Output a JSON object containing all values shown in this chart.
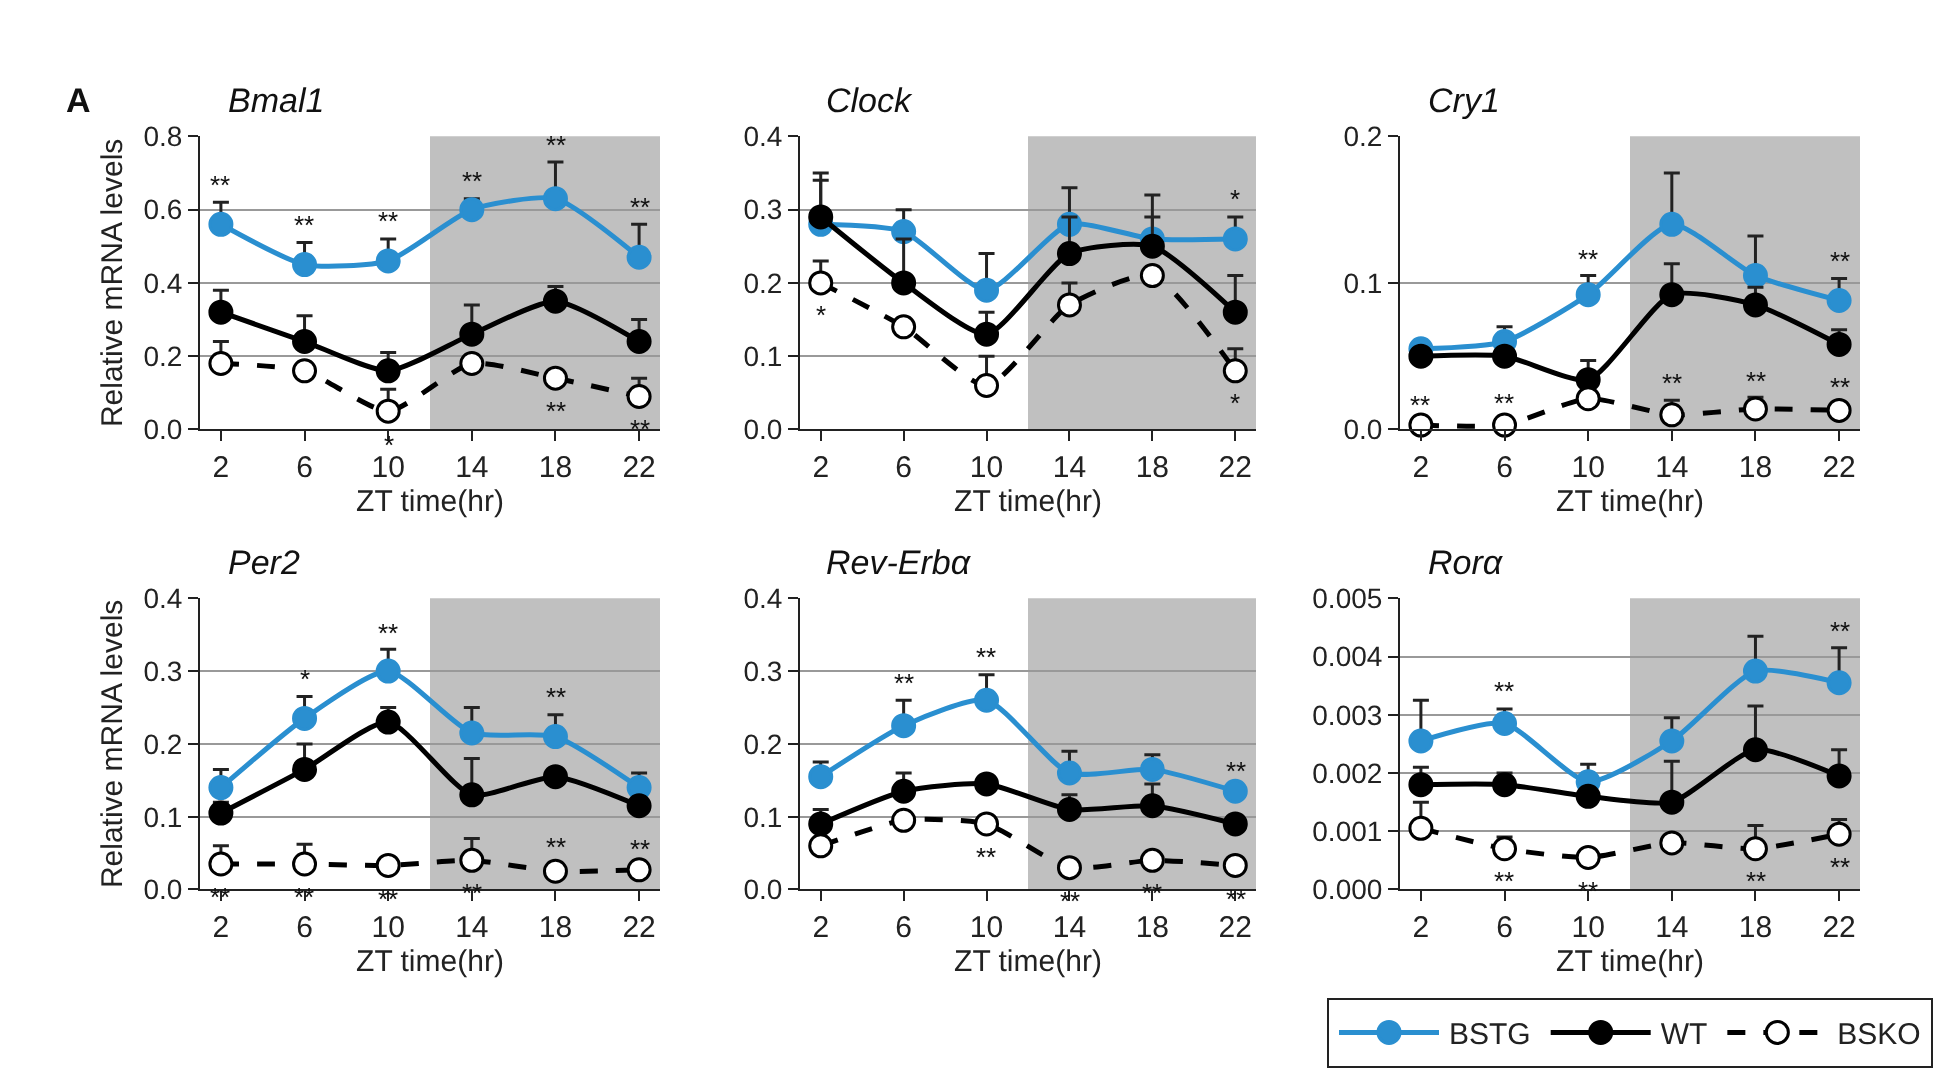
{
  "chart_data": [
    {
      "type": "line",
      "title": "Bmal1",
      "xlabel": "ZT time(hr)",
      "ylabel": "Relative mRNA levels",
      "x": [
        2,
        6,
        10,
        14,
        18,
        22
      ],
      "xlim": [
        1,
        23
      ],
      "xticks": [
        2,
        6,
        10,
        14,
        18,
        22
      ],
      "ylim": [
        0,
        0.8
      ],
      "yticks": [
        {
          "value": 0,
          "label": "0.0"
        },
        {
          "value": 0.2,
          "label": "0.2"
        },
        {
          "value": 0.4,
          "label": "0.4"
        },
        {
          "value": 0.6,
          "label": "0.6"
        },
        {
          "value": 0.8,
          "label": "0.8"
        }
      ],
      "grid": "y",
      "marker": "circle",
      "bands": [
        {
          "axis": "x",
          "from": 12,
          "to": 23,
          "color": "#c0c0c0"
        }
      ],
      "series": [
        {
          "color": "#2a8fd0",
          "line_style": "solid",
          "values": [
            0.56,
            0.45,
            0.46,
            0.6,
            0.63,
            0.47
          ],
          "errors": [
            [
              0.56,
              0.62
            ],
            [
              0.45,
              0.51
            ],
            [
              0.46,
              0.52
            ],
            [
              0.6,
              0.63
            ],
            [
              0.63,
              0.73
            ],
            [
              0.47,
              0.56
            ]
          ]
        },
        {
          "color": "#000000",
          "line_style": "solid",
          "values": [
            0.32,
            0.24,
            0.16,
            0.26,
            0.35,
            0.24
          ],
          "errors": [
            [
              0.32,
              0.38
            ],
            [
              0.24,
              0.31
            ],
            [
              0.16,
              0.21
            ],
            [
              0.26,
              0.34
            ],
            [
              0.35,
              0.39
            ],
            [
              0.24,
              0.3
            ]
          ]
        },
        {
          "color": "#000000",
          "line_style": "dashed",
          "values": [
            0.18,
            0.16,
            0.05,
            0.18,
            0.14,
            0.09
          ],
          "errors": [
            [
              0.18,
              0.24
            ],
            [
              0.16,
              0.18
            ],
            [
              0.05,
              0.11
            ],
            [
              0.18,
              0.19
            ],
            [
              0.14,
              0.16
            ],
            [
              0.09,
              0.14
            ]
          ]
        }
      ],
      "annotations": [
        "A",
        {
          "text": "**",
          "x": 2,
          "y": 0.62
        },
        {
          "text": "**",
          "x": 6,
          "y": 0.51
        },
        {
          "text": "**",
          "x": 10,
          "y": 0.52
        },
        {
          "text": "**",
          "x": 14,
          "y": 0.63
        },
        {
          "text": "**",
          "x": 18,
          "y": 0.73
        },
        {
          "text": "**",
          "x": 22,
          "y": 0.56
        },
        {
          "text": "*",
          "x": 10,
          "y": 0.05
        },
        {
          "text": "**",
          "x": 18,
          "y": 0.14
        },
        {
          "text": "**",
          "x": 22,
          "y": 0.09
        }
      ]
    },
    {
      "type": "line",
      "title": "Clock",
      "xlabel": "ZT time(hr)",
      "x": [
        2,
        6,
        10,
        14,
        18,
        22
      ],
      "xlim": [
        1,
        23
      ],
      "xticks": [
        2,
        6,
        10,
        14,
        18,
        22
      ],
      "ylim": [
        0,
        0.4
      ],
      "yticks": [
        {
          "value": 0,
          "label": "0.0"
        },
        {
          "value": 0.1,
          "label": "0.1"
        },
        {
          "value": 0.2,
          "label": "0.2"
        },
        {
          "value": 0.3,
          "label": "0.3"
        },
        {
          "value": 0.4,
          "label": "0.4"
        }
      ],
      "grid": "y",
      "marker": "circle",
      "bands": [
        {
          "axis": "x",
          "from": 12,
          "to": 23,
          "color": "#c0c0c0"
        }
      ],
      "series": [
        {
          "color": "#2a8fd0",
          "line_style": "solid",
          "values": [
            0.28,
            0.27,
            0.19,
            0.28,
            0.26,
            0.26
          ],
          "errors": [
            [
              0.28,
              0.34
            ],
            [
              0.27,
              0.3
            ],
            [
              0.19,
              0.24
            ],
            [
              0.28,
              0.33
            ],
            [
              0.26,
              0.32
            ],
            [
              0.26,
              0.29
            ]
          ]
        },
        {
          "color": "#000000",
          "line_style": "solid",
          "values": [
            0.29,
            0.2,
            0.13,
            0.24,
            0.25,
            0.16
          ],
          "errors": [
            [
              0.29,
              0.35
            ],
            [
              0.2,
              0.26
            ],
            [
              0.13,
              0.16
            ],
            [
              0.24,
              0.29
            ],
            [
              0.25,
              0.29
            ],
            [
              0.16,
              0.21
            ]
          ]
        },
        {
          "color": "#000000",
          "line_style": "dashed",
          "values": [
            0.2,
            0.14,
            0.06,
            0.17,
            0.21,
            0.08
          ],
          "errors": [
            [
              0.2,
              0.23
            ],
            [
              0.14,
              0.15
            ],
            [
              0.06,
              0.1
            ],
            [
              0.17,
              0.2
            ],
            [
              0.21,
              0.22
            ],
            [
              0.08,
              0.11
            ]
          ]
        }
      ],
      "annotations": [
        {
          "text": "*",
          "x": 2,
          "y": 0.2
        },
        {
          "text": "*",
          "x": 22,
          "y": 0.29
        },
        {
          "text": "*",
          "x": 22,
          "y": 0.08
        }
      ]
    },
    {
      "type": "line",
      "title": "Cry1",
      "xlabel": "ZT time(hr)",
      "x": [
        2,
        6,
        10,
        14,
        18,
        22
      ],
      "xlim": [
        1,
        23
      ],
      "xticks": [
        2,
        6,
        10,
        14,
        18,
        22
      ],
      "ylim": [
        0,
        0.2
      ],
      "yticks": [
        {
          "value": 0,
          "label": "0.0"
        },
        {
          "value": 0.1,
          "label": "0.1"
        },
        {
          "value": 0.2,
          "label": "0.2"
        }
      ],
      "grid": "y",
      "marker": "circle",
      "bands": [
        {
          "axis": "x",
          "from": 12,
          "to": 23,
          "color": "#c0c0c0"
        }
      ],
      "series": [
        {
          "color": "#2a8fd0",
          "line_style": "solid",
          "values": [
            0.055,
            0.06,
            0.092,
            0.14,
            0.105,
            0.088
          ],
          "errors": [
            [
              0.055,
              0.058
            ],
            [
              0.06,
              0.07
            ],
            [
              0.092,
              0.105
            ],
            [
              0.14,
              0.175
            ],
            [
              0.105,
              0.132
            ],
            [
              0.088,
              0.103
            ]
          ]
        },
        {
          "color": "#000000",
          "line_style": "solid",
          "values": [
            0.05,
            0.05,
            0.034,
            0.092,
            0.085,
            0.058
          ],
          "errors": [
            [
              0.05,
              0.052
            ],
            [
              0.05,
              0.052
            ],
            [
              0.034,
              0.047
            ],
            [
              0.092,
              0.113
            ],
            [
              0.085,
              0.097
            ],
            [
              0.058,
              0.068
            ]
          ]
        },
        {
          "color": "#000000",
          "line_style": "dashed",
          "values": [
            0.003,
            0.003,
            0.021,
            0.01,
            0.014,
            0.013
          ],
          "errors": [
            [
              0.003,
              0.005
            ],
            [
              0.003,
              0.006
            ],
            [
              0.021,
              0.026
            ],
            [
              0.01,
              0.02
            ],
            [
              0.014,
              0.022
            ],
            [
              0.013,
              0.018
            ]
          ]
        }
      ],
      "annotations": [
        {
          "text": "**",
          "x": 10,
          "y": 0.105
        },
        {
          "text": "**",
          "x": 22,
          "y": 0.103
        },
        {
          "text": "**",
          "x": 2,
          "y": 0.005
        },
        {
          "text": "**",
          "x": 6,
          "y": 0.006
        },
        {
          "text": "**",
          "x": 14,
          "y": 0.02
        },
        {
          "text": "**",
          "x": 18,
          "y": 0.022
        },
        {
          "text": "**",
          "x": 22,
          "y": 0.018
        }
      ]
    },
    {
      "type": "line",
      "title": "Per2",
      "xlabel": "ZT time(hr)",
      "ylabel": "Relative mRNA levels",
      "x": [
        2,
        6,
        10,
        14,
        18,
        22
      ],
      "xlim": [
        1,
        23
      ],
      "xticks": [
        2,
        6,
        10,
        14,
        18,
        22
      ],
      "ylim": [
        0,
        0.4
      ],
      "yticks": [
        {
          "value": 0,
          "label": "0.0"
        },
        {
          "value": 0.1,
          "label": "0.1"
        },
        {
          "value": 0.2,
          "label": "0.2"
        },
        {
          "value": 0.3,
          "label": "0.3"
        },
        {
          "value": 0.4,
          "label": "0.4"
        }
      ],
      "grid": "y",
      "marker": "circle",
      "bands": [
        {
          "axis": "x",
          "from": 12,
          "to": 23,
          "color": "#c0c0c0"
        }
      ],
      "series": [
        {
          "color": "#2a8fd0",
          "line_style": "solid",
          "values": [
            0.14,
            0.235,
            0.3,
            0.215,
            0.21,
            0.14
          ],
          "errors": [
            [
              0.14,
              0.165
            ],
            [
              0.235,
              0.265
            ],
            [
              0.3,
              0.33
            ],
            [
              0.215,
              0.25
            ],
            [
              0.21,
              0.24
            ],
            [
              0.14,
              0.16
            ]
          ]
        },
        {
          "color": "#000000",
          "line_style": "solid",
          "values": [
            0.105,
            0.165,
            0.23,
            0.13,
            0.155,
            0.115
          ],
          "errors": [
            [
              0.105,
              0.12
            ],
            [
              0.165,
              0.2
            ],
            [
              0.23,
              0.25
            ],
            [
              0.13,
              0.18
            ],
            [
              0.155,
              0.165
            ],
            [
              0.115,
              0.125
            ]
          ]
        },
        {
          "color": "#000000",
          "line_style": "dashed",
          "values": [
            0.035,
            0.035,
            0.033,
            0.04,
            0.025,
            0.027
          ],
          "errors": [
            [
              0.035,
              0.06
            ],
            [
              0.035,
              0.062
            ],
            [
              0.033,
              0.036
            ],
            [
              0.04,
              0.07
            ],
            [
              0.025,
              0.036
            ],
            [
              0.027,
              0.032
            ]
          ]
        }
      ],
      "annotations": [
        {
          "text": "*",
          "x": 6,
          "y": 0.265
        },
        {
          "text": "**",
          "x": 10,
          "y": 0.33
        },
        {
          "text": "**",
          "x": 18,
          "y": 0.24
        },
        {
          "text": "**",
          "x": 2,
          "y": 0.035
        },
        {
          "text": "**",
          "x": 6,
          "y": 0.035
        },
        {
          "text": "**",
          "x": 10,
          "y": 0.033
        },
        {
          "text": "**",
          "x": 14,
          "y": 0.04
        },
        {
          "text": "**",
          "x": 18,
          "y": 0.036
        },
        {
          "text": "**",
          "x": 22,
          "y": 0.032
        }
      ]
    },
    {
      "type": "line",
      "title": "Rev-Erbα",
      "xlabel": "ZT time(hr)",
      "x": [
        2,
        6,
        10,
        14,
        18,
        22
      ],
      "xlim": [
        1,
        23
      ],
      "xticks": [
        2,
        6,
        10,
        14,
        18,
        22
      ],
      "ylim": [
        0,
        0.4
      ],
      "yticks": [
        {
          "value": 0,
          "label": "0.0"
        },
        {
          "value": 0.1,
          "label": "0.1"
        },
        {
          "value": 0.2,
          "label": "0.2"
        },
        {
          "value": 0.3,
          "label": "0.3"
        },
        {
          "value": 0.4,
          "label": "0.4"
        }
      ],
      "grid": "y",
      "marker": "circle",
      "bands": [
        {
          "axis": "x",
          "from": 12,
          "to": 23,
          "color": "#c0c0c0"
        }
      ],
      "series": [
        {
          "color": "#2a8fd0",
          "line_style": "solid",
          "values": [
            0.155,
            0.225,
            0.26,
            0.16,
            0.165,
            0.135
          ],
          "errors": [
            [
              0.155,
              0.175
            ],
            [
              0.225,
              0.26
            ],
            [
              0.26,
              0.295
            ],
            [
              0.16,
              0.19
            ],
            [
              0.165,
              0.185
            ],
            [
              0.135,
              0.14
            ]
          ]
        },
        {
          "color": "#000000",
          "line_style": "solid",
          "values": [
            0.09,
            0.135,
            0.145,
            0.11,
            0.115,
            0.09
          ],
          "errors": [
            [
              0.09,
              0.11
            ],
            [
              0.135,
              0.16
            ],
            [
              0.145,
              0.15
            ],
            [
              0.11,
              0.13
            ],
            [
              0.115,
              0.145
            ],
            [
              0.09,
              0.095
            ]
          ]
        },
        {
          "color": "#000000",
          "line_style": "dashed",
          "values": [
            0.06,
            0.095,
            0.09,
            0.03,
            0.04,
            0.033
          ],
          "errors": [
            [
              0.06,
              0.065
            ],
            [
              0.095,
              0.1
            ],
            [
              0.09,
              0.095
            ],
            [
              0.03,
              0.035
            ],
            [
              0.04,
              0.045
            ],
            [
              0.033,
              0.04
            ]
          ]
        }
      ],
      "annotations": [
        {
          "text": "**",
          "x": 6,
          "y": 0.26
        },
        {
          "text": "**",
          "x": 10,
          "y": 0.295
        },
        {
          "text": "**",
          "x": 22,
          "y": 0.14
        },
        {
          "text": "**",
          "x": 10,
          "y": 0.09
        },
        {
          "text": "**",
          "x": 14,
          "y": 0.03
        },
        {
          "text": "**",
          "x": 18,
          "y": 0.04
        },
        {
          "text": "**",
          "x": 22,
          "y": 0.033
        }
      ]
    },
    {
      "type": "line",
      "title": "Rorα",
      "xlabel": "ZT time(hr)",
      "x": [
        2,
        6,
        10,
        14,
        18,
        22
      ],
      "xlim": [
        1,
        23
      ],
      "xticks": [
        2,
        6,
        10,
        14,
        18,
        22
      ],
      "ylim": [
        0,
        0.005
      ],
      "yticks": [
        {
          "value": 0,
          "label": "0.000"
        },
        {
          "value": 0.001,
          "label": "0.001"
        },
        {
          "value": 0.002,
          "label": "0.002"
        },
        {
          "value": 0.003,
          "label": "0.003"
        },
        {
          "value": 0.004,
          "label": "0.004"
        },
        {
          "value": 0.005,
          "label": "0.005"
        }
      ],
      "grid": "y",
      "marker": "circle",
      "legend": "bottom",
      "bands": [
        {
          "axis": "x",
          "from": 12,
          "to": 23,
          "color": "#c0c0c0"
        }
      ],
      "series": [
        {
          "name": "BSTG",
          "color": "#2a8fd0",
          "line_style": "solid",
          "values": [
            0.00255,
            0.00285,
            0.00185,
            0.00255,
            0.00375,
            0.00355
          ],
          "errors": [
            [
              0.00255,
              0.00325
            ],
            [
              0.00285,
              0.0031
            ],
            [
              0.00185,
              0.00215
            ],
            [
              0.00255,
              0.00295
            ],
            [
              0.00375,
              0.00435
            ],
            [
              0.00355,
              0.00415
            ]
          ]
        },
        {
          "name": "WT",
          "color": "#000000",
          "line_style": "solid",
          "values": [
            0.0018,
            0.0018,
            0.0016,
            0.0015,
            0.0024,
            0.00195
          ],
          "errors": [
            [
              0.0018,
              0.0021
            ],
            [
              0.0018,
              0.002
            ],
            [
              0.0016,
              0.0017
            ],
            [
              0.0015,
              0.0022
            ],
            [
              0.0024,
              0.00315
            ],
            [
              0.00195,
              0.0024
            ]
          ]
        },
        {
          "name": "BSKO",
          "color": "#000000",
          "line_style": "dashed",
          "values": [
            0.00105,
            0.0007,
            0.00055,
            0.0008,
            0.0007,
            0.00095
          ],
          "errors": [
            [
              0.00105,
              0.0015
            ],
            [
              0.0007,
              0.0009
            ],
            [
              0.00055,
              0.0006
            ],
            [
              0.0008,
              0.0009
            ],
            [
              0.0007,
              0.0011
            ],
            [
              0.00095,
              0.0012
            ]
          ]
        }
      ],
      "annotations": [
        {
          "text": "**",
          "x": 6,
          "y": 0.0031
        },
        {
          "text": "**",
          "x": 22,
          "y": 0.00415
        },
        {
          "text": "**",
          "x": 6,
          "y": 0.0007
        },
        {
          "text": "**",
          "x": 10,
          "y": 0.00055
        },
        {
          "text": "**",
          "x": 18,
          "y": 0.0007
        },
        {
          "text": "**",
          "x": 22,
          "y": 0.00095
        }
      ]
    }
  ]
}
